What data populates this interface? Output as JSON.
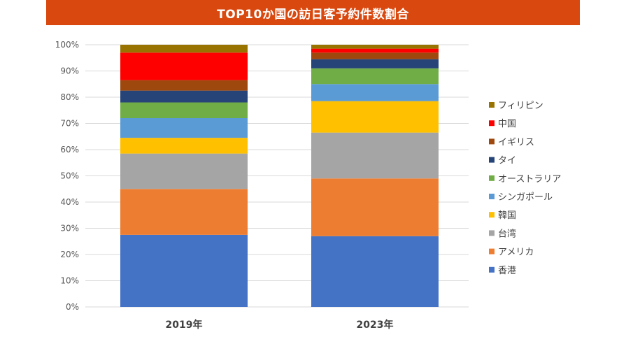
{
  "chart_data": {
    "type": "bar",
    "stacked": true,
    "title": "TOP10か国の訪日客予約件数割合",
    "categories": [
      "2019年",
      "2023年"
    ],
    "y_ticks": [
      "0%",
      "10%",
      "20%",
      "30%",
      "40%",
      "50%",
      "60%",
      "70%",
      "80%",
      "90%",
      "100%"
    ],
    "ylim": [
      0,
      100
    ],
    "grid": true,
    "legend_position": "right",
    "legend_order": "reverse",
    "series": [
      {
        "name": "香港",
        "color": "#4472C4",
        "values": [
          27.5,
          27.0
        ]
      },
      {
        "name": "アメリカ",
        "color": "#ED7D31",
        "values": [
          17.5,
          22.0
        ]
      },
      {
        "name": "台湾",
        "color": "#A5A5A5",
        "values": [
          13.5,
          17.5
        ]
      },
      {
        "name": "韓国",
        "color": "#FFC000",
        "values": [
          6.0,
          12.0
        ]
      },
      {
        "name": "シンガポール",
        "color": "#5B9BD5",
        "values": [
          7.5,
          6.5
        ]
      },
      {
        "name": "オーストラリア",
        "color": "#70AD47",
        "values": [
          6.0,
          6.0
        ]
      },
      {
        "name": "タイ",
        "color": "#264478",
        "values": [
          4.5,
          3.5
        ]
      },
      {
        "name": "イギリス",
        "color": "#9E480E",
        "values": [
          4.0,
          2.5
        ]
      },
      {
        "name": "中国",
        "color": "#FF0000",
        "values": [
          10.5,
          1.5
        ]
      },
      {
        "name": "フィリピン",
        "color": "#997300",
        "values": [
          3.0,
          1.5
        ]
      }
    ]
  },
  "colors": {
    "title_bg": "#D9480F",
    "gridline": "#D9D9D9"
  }
}
